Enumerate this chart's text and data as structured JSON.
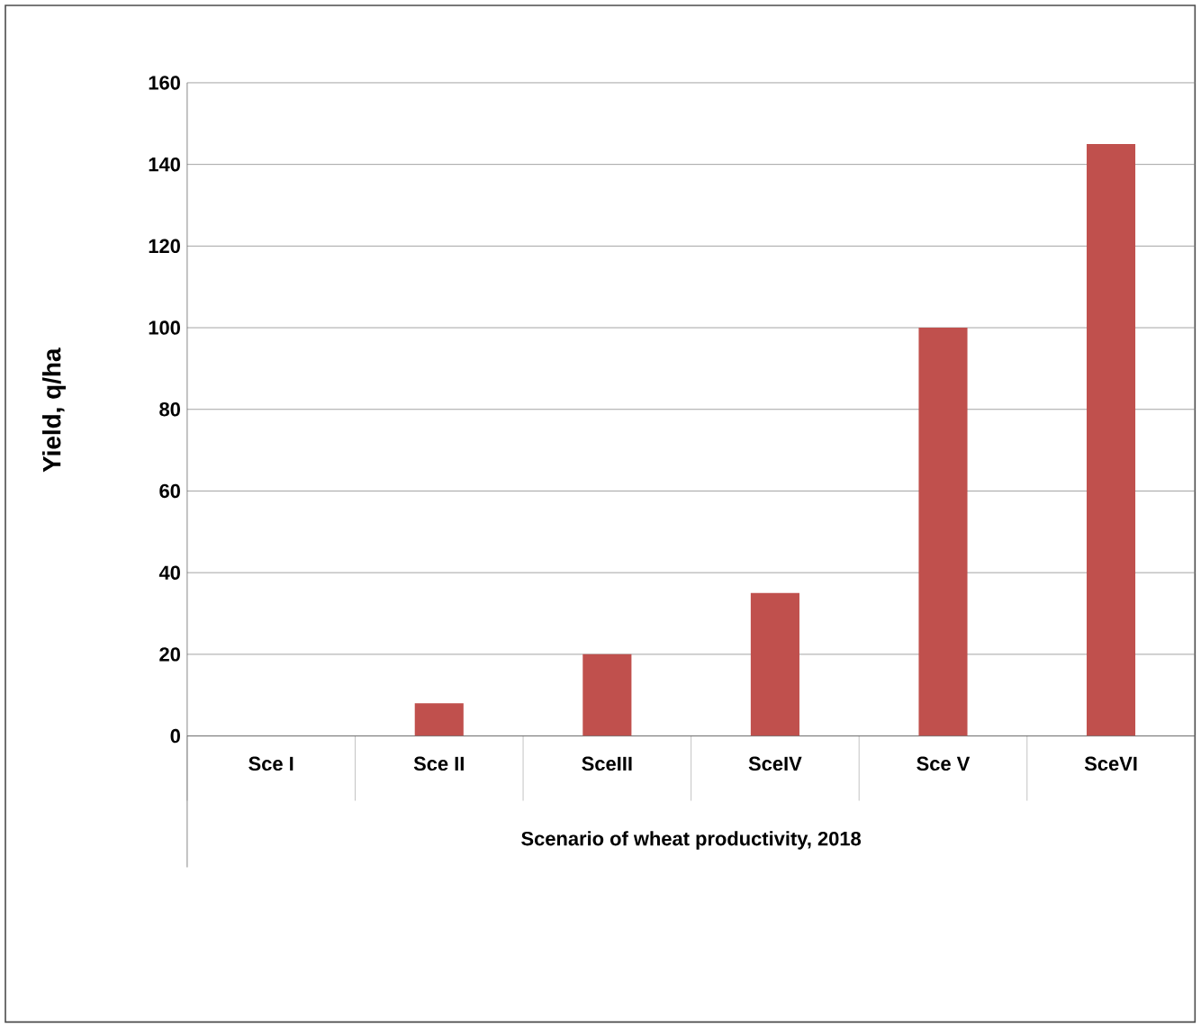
{
  "chart_data": {
    "type": "bar",
    "xlabel": "Scenario of wheat productivity, 2018",
    "ylabel": "Yield, q/ha",
    "categories": [
      "Sce I",
      "Sce II",
      "SceIII",
      "SceIV",
      "Sce V",
      "SceVI"
    ],
    "values": [
      0,
      8,
      20,
      35,
      100,
      145
    ],
    "color": "#c0504d",
    "ylim": [
      0,
      160
    ],
    "yticks": [
      0,
      20,
      40,
      60,
      80,
      100,
      120,
      140,
      160
    ],
    "grid": "y"
  }
}
